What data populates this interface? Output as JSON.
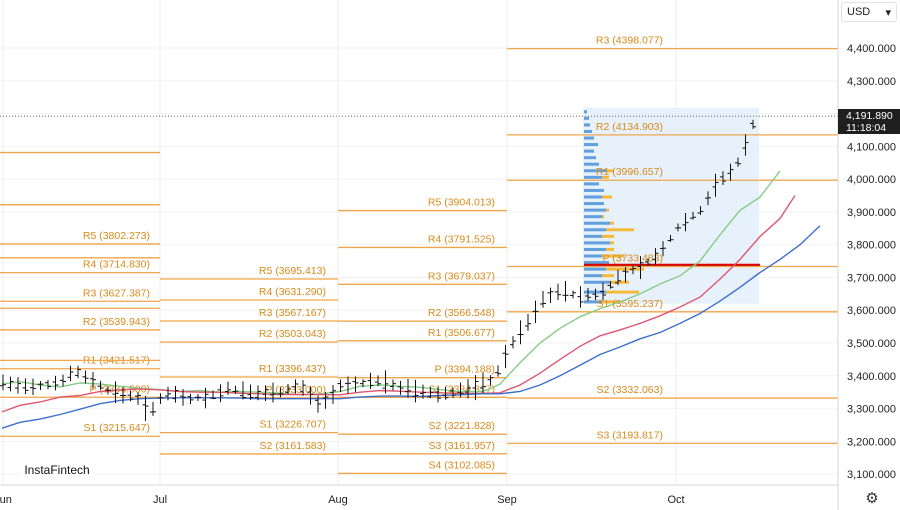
{
  "header": {
    "currency": "USD",
    "currency_caret": "▾"
  },
  "price_tag": {
    "price": "4,191.890",
    "countdown": "11:18:04"
  },
  "brand": {
    "name": "InstaFintech"
  },
  "settings": {
    "icon": "gear-icon",
    "glyph": "⚙"
  },
  "colors": {
    "pivot_line": "#f0a64a",
    "pivot_text": "#d98a1a",
    "candle": "#111111",
    "ma_fast": "#86cc86",
    "ma_mid": "#e0566e",
    "ma_slow": "#3d6fd0",
    "volume_profile": "#f5b93a",
    "volume_profile_alt": "#4a90d9",
    "poc_line": "#d60000",
    "range_box": "#e6f1fb"
  },
  "chart_data": {
    "type": "candlestick",
    "title": "",
    "y_axis": {
      "min": 3050,
      "max": 4500,
      "ticks": [
        "4,400.000",
        "4,300.000",
        "4,200.000",
        "4,100.000",
        "4,000.000",
        "3,900.000",
        "3,800.000",
        "3,700.000",
        "3,600.000",
        "3,500.000",
        "3,400.000",
        "3,300.000",
        "3,200.000",
        "3,100.000"
      ]
    },
    "x_axis": {
      "labels": [
        "Jun",
        "Jul",
        "Aug",
        "Sep",
        "Oct"
      ]
    },
    "current_price": 4191.89,
    "pivots": [
      {
        "period": "Jun",
        "levels": [
          {
            "label": "R5 (3802.273)",
            "value": 3802.273
          },
          {
            "label": "R4 (3714.830)",
            "value": 3714.83
          },
          {
            "label": "R3 (3627.387)",
            "value": 3627.387
          },
          {
            "label": "R2 (3539.943)",
            "value": 3539.943
          },
          {
            "label": "R1 (3421.517)",
            "value": 3421.517
          },
          {
            "label": "P (3334.500)",
            "value": 3334.5
          },
          {
            "label": "S1 (3215.647)",
            "value": 3215.647
          }
        ]
      },
      {
        "period": "Jul",
        "levels": [
          {
            "label": "R5 (3695.413)",
            "value": 3695.413
          },
          {
            "label": "R4 (3631.290)",
            "value": 3631.29
          },
          {
            "label": "R3 (3567.167)",
            "value": 3567.167
          },
          {
            "label": "R2 (3503.043)",
            "value": 3503.043
          },
          {
            "label": "R1 (3396.437)",
            "value": 3396.437
          },
          {
            "label": "P (3333.000)",
            "value": 3333.0
          },
          {
            "label": "S1 (3226.707)",
            "value": 3226.707
          },
          {
            "label": "S2 (3161.583)",
            "value": 3161.583
          }
        ]
      },
      {
        "period": "Aug",
        "levels": [
          {
            "label": "R5 (3904.013)",
            "value": 3904.013
          },
          {
            "label": "R4 (3791.525)",
            "value": 3791.525
          },
          {
            "label": "R3 (3679.037)",
            "value": 3679.037
          },
          {
            "label": "R2 (3566.548)",
            "value": 3566.548
          },
          {
            "label": "R1 (3506.677)",
            "value": 3506.677
          },
          {
            "label": "P (3394.188)",
            "value": 3394.188
          },
          {
            "label": "S1 (3334.317)",
            "value": 3334.317
          },
          {
            "label": "S2 (3221.828)",
            "value": 3221.828
          },
          {
            "label": "S3 (3161.957)",
            "value": 3161.957
          },
          {
            "label": "S4 (3102.085)",
            "value": 3102.085
          }
        ]
      },
      {
        "period": "Sep",
        "levels": [
          {
            "label": "R3 (4398.077)",
            "value": 4398.077
          },
          {
            "label": "R2 (4134.903)",
            "value": 4134.903
          },
          {
            "label": "R1 (3996.657)",
            "value": 3996.657
          },
          {
            "label": "P (3733.483)",
            "value": 3733.483
          },
          {
            "label": "S1 (3595.237)",
            "value": 3595.237
          },
          {
            "label": "S2 (3332.063)",
            "value": 3332.063
          },
          {
            "label": "S3 (3193.817)",
            "value": 3193.817
          }
        ]
      }
    ],
    "ma_fast": [
      [
        2,
        3375
      ],
      [
        20,
        3382
      ],
      [
        40,
        3372
      ],
      [
        60,
        3366
      ],
      [
        80,
        3378
      ],
      [
        100,
        3375
      ],
      [
        120,
        3368
      ],
      [
        140,
        3362
      ],
      [
        160,
        3358
      ],
      [
        180,
        3352
      ],
      [
        200,
        3355
      ],
      [
        220,
        3350
      ],
      [
        240,
        3352
      ],
      [
        260,
        3350
      ],
      [
        280,
        3347
      ],
      [
        300,
        3342
      ],
      [
        320,
        3345
      ],
      [
        340,
        3352
      ],
      [
        360,
        3368
      ],
      [
        380,
        3372
      ],
      [
        400,
        3368
      ],
      [
        420,
        3365
      ],
      [
        440,
        3358
      ],
      [
        460,
        3352
      ],
      [
        480,
        3352
      ],
      [
        490,
        3360
      ],
      [
        500,
        3375
      ],
      [
        520,
        3440
      ],
      [
        540,
        3500
      ],
      [
        560,
        3545
      ],
      [
        580,
        3580
      ],
      [
        600,
        3605
      ],
      [
        620,
        3625
      ],
      [
        640,
        3650
      ],
      [
        660,
        3680
      ],
      [
        680,
        3705
      ],
      [
        700,
        3750
      ],
      [
        720,
        3830
      ],
      [
        740,
        3905
      ],
      [
        760,
        3945
      ],
      [
        780,
        4025
      ]
    ],
    "ma_mid": [
      [
        2,
        3290
      ],
      [
        20,
        3310
      ],
      [
        40,
        3320
      ],
      [
        60,
        3335
      ],
      [
        80,
        3340
      ],
      [
        100,
        3352
      ],
      [
        120,
        3357
      ],
      [
        140,
        3360
      ],
      [
        160,
        3357
      ],
      [
        180,
        3352
      ],
      [
        200,
        3350
      ],
      [
        220,
        3350
      ],
      [
        240,
        3347
      ],
      [
        260,
        3345
      ],
      [
        280,
        3343
      ],
      [
        300,
        3343
      ],
      [
        320,
        3343
      ],
      [
        340,
        3342
      ],
      [
        360,
        3350
      ],
      [
        380,
        3355
      ],
      [
        400,
        3353
      ],
      [
        420,
        3350
      ],
      [
        440,
        3348
      ],
      [
        460,
        3346
      ],
      [
        480,
        3346
      ],
      [
        500,
        3348
      ],
      [
        520,
        3372
      ],
      [
        540,
        3408
      ],
      [
        560,
        3450
      ],
      [
        580,
        3490
      ],
      [
        600,
        3522
      ],
      [
        620,
        3540
      ],
      [
        640,
        3560
      ],
      [
        660,
        3583
      ],
      [
        680,
        3610
      ],
      [
        700,
        3640
      ],
      [
        720,
        3695
      ],
      [
        740,
        3755
      ],
      [
        760,
        3825
      ],
      [
        780,
        3880
      ],
      [
        795,
        3950
      ]
    ],
    "ma_slow": [
      [
        2,
        3240
      ],
      [
        20,
        3258
      ],
      [
        40,
        3268
      ],
      [
        60,
        3282
      ],
      [
        80,
        3298
      ],
      [
        100,
        3315
      ],
      [
        120,
        3325
      ],
      [
        140,
        3330
      ],
      [
        160,
        3332
      ],
      [
        180,
        3333
      ],
      [
        200,
        3333
      ],
      [
        220,
        3333
      ],
      [
        240,
        3332
      ],
      [
        260,
        3330
      ],
      [
        280,
        3330
      ],
      [
        300,
        3330
      ],
      [
        320,
        3330
      ],
      [
        340,
        3330
      ],
      [
        360,
        3335
      ],
      [
        380,
        3338
      ],
      [
        400,
        3338
      ],
      [
        420,
        3337
      ],
      [
        440,
        3340
      ],
      [
        460,
        3342
      ],
      [
        480,
        3345
      ],
      [
        500,
        3345
      ],
      [
        520,
        3352
      ],
      [
        540,
        3372
      ],
      [
        560,
        3400
      ],
      [
        580,
        3432
      ],
      [
        600,
        3465
      ],
      [
        620,
        3488
      ],
      [
        640,
        3513
      ],
      [
        660,
        3532
      ],
      [
        680,
        3560
      ],
      [
        700,
        3590
      ],
      [
        720,
        3628
      ],
      [
        740,
        3670
      ],
      [
        760,
        3715
      ],
      [
        780,
        3755
      ],
      [
        800,
        3800
      ],
      [
        820,
        3858
      ]
    ],
    "volume_profile_levels": [
      3620,
      3650,
      3680,
      3700,
      3720,
      3740,
      3760,
      3780,
      3800,
      3820,
      3840,
      3860,
      3880,
      3900,
      3920,
      3940,
      3960,
      3980,
      4000,
      4020,
      4040,
      4060,
      4080,
      4100,
      4120,
      4140,
      4160,
      4180,
      4200
    ],
    "volume_profile_values": [
      35,
      55,
      45,
      30,
      60,
      25,
      40,
      30,
      30,
      30,
      50,
      30,
      20,
      25,
      20,
      28,
      20,
      15,
      25,
      30,
      15,
      12,
      10,
      14,
      10,
      8,
      6,
      5,
      3
    ],
    "point_of_control": 3738
  }
}
